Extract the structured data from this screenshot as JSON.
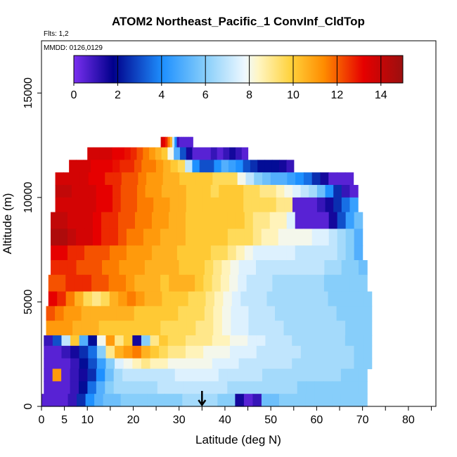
{
  "chart_data": {
    "type": "heatmap",
    "title": "ATOM2 Northeast_Pacific_1 ConvInf_CldTop",
    "subtitle_flights": "Flts: 1,2",
    "subtitle_dates": "MMDD: 0126,0129",
    "xlabel": "Latitude (deg N)",
    "ylabel": "Altitude (m)",
    "xlim": [
      0,
      86
    ],
    "ylim": [
      0,
      17500
    ],
    "x_ticks": [
      "0",
      "5",
      "10",
      "20",
      "30",
      "40",
      "50",
      "60",
      "70",
      "80"
    ],
    "y_ticks": [
      "0",
      "5000",
      "10000",
      "15000"
    ],
    "colorbar": {
      "range": [
        0,
        15
      ],
      "ticks": [
        "0",
        "2",
        "4",
        "6",
        "8",
        "10",
        "12",
        "14"
      ],
      "position": "top-inside"
    },
    "marker": {
      "type": "arrow-up",
      "x": 35
    },
    "colors": {
      "purple": "#7a2ff0",
      "navy": "#00008b",
      "blue": "#1e90ff",
      "skyblue": "#87cefa",
      "white": "#eef8ff",
      "yellow": "#ffd23c",
      "orange": "#ff8c00",
      "red": "#e60000",
      "darkred": "#9b0f0f"
    },
    "rows": [
      {
        "y0": 12400,
        "y1": 12900,
        "x0": 26,
        "x1": 33,
        "v": [
          13.5,
          13,
          12.5,
          11.5,
          10.5,
          7,
          4,
          1,
          0.5,
          0.5,
          0.5,
          0.5,
          0.5,
          0.5
        ]
      },
      {
        "y0": 11800,
        "y1": 12400,
        "x0": 10,
        "x1": 45,
        "v": [
          13.5,
          13.5,
          13.5,
          13.5,
          13,
          13,
          12.8,
          12.5,
          12,
          11.5,
          11,
          10.5,
          10,
          8,
          5,
          3,
          1.5,
          0.5,
          0.5,
          0.5,
          1,
          0.5,
          1,
          1.5,
          1,
          0.5
        ]
      },
      {
        "y0": 11200,
        "y1": 11800,
        "x0": 6,
        "x1": 55,
        "v": [
          13.5,
          13.5,
          13.5,
          13,
          13,
          13,
          12.8,
          12.5,
          12.5,
          12,
          11.5,
          11.5,
          11,
          10.5,
          10,
          9.5,
          7,
          4,
          3,
          3,
          4,
          5,
          4.5,
          4,
          3,
          2.5,
          2,
          2,
          2,
          1.5,
          1
        ]
      },
      {
        "y0": 10600,
        "y1": 11200,
        "x0": 3,
        "x1": 68,
        "v": [
          13.5,
          13.5,
          13.5,
          13.5,
          13,
          13,
          12.5,
          12.5,
          12,
          12,
          11.5,
          11,
          11,
          10.5,
          10.5,
          10,
          10,
          10,
          10,
          9.5,
          9.5,
          9.5,
          8,
          7,
          6,
          5.5,
          5,
          5,
          4.5,
          4,
          3.5,
          2.5,
          1.5,
          0.5,
          0.5,
          0.5
        ]
      },
      {
        "y0": 10000,
        "y1": 10600,
        "x0": 3,
        "x1": 69,
        "v": [
          14,
          14,
          13.5,
          13.5,
          13.5,
          13,
          13,
          12.5,
          12,
          12,
          11.5,
          11,
          11,
          10.5,
          10.5,
          10.5,
          10,
          10,
          10,
          9.5,
          10,
          10,
          10,
          9.5,
          9.5,
          9,
          9,
          8.5,
          8,
          7.5,
          7,
          6.5,
          5.5,
          4,
          2.5,
          1,
          0.5
        ]
      },
      {
        "y0": 9300,
        "y1": 10000,
        "x0": 3,
        "x1": 69,
        "v": [
          13.5,
          13.5,
          13.5,
          13.5,
          13.5,
          13,
          13,
          12.5,
          12,
          12,
          11.5,
          11.5,
          11,
          11,
          10.5,
          10.5,
          10,
          10,
          10,
          10,
          10,
          10,
          10,
          9.5,
          9.5,
          9.5,
          9.5,
          9,
          9,
          0.5,
          0.5,
          0.5,
          1,
          1.5,
          2.5,
          3.5,
          4.5
        ]
      },
      {
        "y0": 8500,
        "y1": 9300,
        "x0": 2,
        "x1": 70,
        "v": [
          14,
          14,
          13.5,
          13.5,
          13.5,
          13,
          12.5,
          12.5,
          12,
          12,
          11.5,
          11.5,
          11,
          11,
          10.5,
          10.5,
          10,
          10,
          10,
          10,
          10,
          10,
          10,
          9.5,
          9,
          9,
          8.5,
          8.5,
          7.5,
          0.5,
          0.5,
          0.5,
          0.5,
          1.5,
          3,
          4.5,
          5.5
        ]
      },
      {
        "y0": 7700,
        "y1": 8500,
        "x0": 2,
        "x1": 70,
        "v": [
          14.5,
          14.5,
          14,
          13.5,
          13.5,
          13,
          12.5,
          12.5,
          12,
          11.5,
          11.5,
          11,
          11,
          10.5,
          10.5,
          10.5,
          10,
          10,
          10,
          10,
          10,
          9.5,
          9.5,
          9.5,
          9,
          8.5,
          8.5,
          8,
          8,
          8,
          8,
          7.5,
          7.5,
          7,
          6.5,
          6,
          5
        ]
      },
      {
        "y0": 7000,
        "y1": 7700,
        "x0": 2,
        "x1": 70,
        "v": [
          13,
          13,
          12.5,
          12.5,
          12,
          12,
          12,
          11.5,
          11.5,
          11,
          11,
          11,
          10.5,
          10.5,
          10.5,
          10,
          10,
          10,
          10,
          9.5,
          9.5,
          9,
          8.5,
          8,
          7.5,
          7.5,
          7.5,
          7.5,
          7.5,
          7,
          7,
          7,
          7,
          7,
          6.5,
          6,
          5
        ]
      },
      {
        "y0": 6300,
        "y1": 7000,
        "x0": 2,
        "x1": 71,
        "v": [
          12.5,
          12.5,
          12.5,
          12,
          12,
          12,
          11.5,
          11.5,
          11,
          11,
          11,
          10.5,
          10.5,
          10.5,
          10.5,
          10,
          10,
          10,
          9.5,
          9,
          8.5,
          8,
          7.5,
          7.5,
          7,
          7,
          7,
          7,
          7,
          7,
          7,
          7,
          6.5,
          6.5,
          6,
          6,
          5.5
        ]
      },
      {
        "y0": 5500,
        "y1": 6300,
        "x0": 1.5,
        "x1": 71,
        "v": [
          12,
          12,
          12.5,
          12.5,
          12.5,
          12,
          12,
          11.5,
          11.5,
          11,
          10.5,
          10.5,
          10.5,
          10,
          10.5,
          10.5,
          10.5,
          10,
          9.5,
          9,
          8.5,
          8,
          7.5,
          7,
          7,
          7,
          6.5,
          6.5,
          6.5,
          6.5,
          6.5,
          6.5,
          6,
          6,
          6,
          6,
          6
        ]
      },
      {
        "y0": 4800,
        "y1": 5500,
        "x0": 1.5,
        "x1": 72,
        "v": [
          13,
          12.5,
          11.5,
          10.5,
          9.5,
          9,
          9.5,
          10.5,
          11,
          11.5,
          11,
          10.5,
          10.5,
          10,
          10,
          10,
          9.5,
          9.5,
          9,
          8.5,
          8,
          7.5,
          7,
          7,
          7,
          6.5,
          6.5,
          6.5,
          6.5,
          6.5,
          6.5,
          6.5,
          6,
          6,
          6,
          6,
          6
        ]
      },
      {
        "y0": 4100,
        "y1": 4800,
        "x0": 1,
        "x1": 72,
        "v": [
          12,
          11.5,
          11,
          11,
          10.5,
          10.5,
          10.5,
          10.5,
          10.5,
          10.5,
          10,
          10,
          10,
          10,
          10,
          9.5,
          9.5,
          9.5,
          9,
          8.5,
          8,
          7.5,
          7.5,
          7,
          7,
          7,
          6.5,
          6.5,
          6.5,
          6.5,
          6.5,
          6.5,
          6.5,
          6,
          6,
          6,
          6
        ]
      },
      {
        "y0": 3400,
        "y1": 4100,
        "x0": 1,
        "x1": 72,
        "v": [
          11,
          11,
          11,
          10.5,
          10.5,
          10.5,
          10,
          10,
          10,
          10,
          10,
          10,
          10,
          9.5,
          9.5,
          9.5,
          9.5,
          9,
          9,
          8.5,
          8,
          7.5,
          7.5,
          7,
          7,
          7,
          7,
          6.5,
          6.5,
          6.5,
          6.5,
          6.5,
          6.5,
          6.5,
          6,
          6,
          6
        ]
      },
      {
        "y0": 2900,
        "y1": 3400,
        "x0": 0.5,
        "x1": 72,
        "v": [
          1,
          3,
          7,
          10,
          5,
          2,
          8,
          11,
          9,
          10,
          1.5,
          6,
          9,
          10,
          9.5,
          9.5,
          9,
          9,
          9,
          8.5,
          8.5,
          8,
          8,
          7.5,
          7.5,
          7,
          7,
          7,
          6.5,
          6.5,
          6.5,
          6.5,
          6.5,
          6.5,
          6,
          6,
          6
        ]
      },
      {
        "y0": 2300,
        "y1": 2900,
        "x0": 0.5,
        "x1": 72,
        "v": [
          0.5,
          0.5,
          1,
          1.5,
          2.5,
          3.5,
          6,
          9,
          10.5,
          11,
          11.5,
          10.5,
          10,
          9.5,
          9,
          9,
          8.5,
          8.5,
          8,
          8,
          8,
          7.5,
          7.5,
          7.5,
          7,
          7,
          7,
          7,
          7,
          6.5,
          6.5,
          6.5,
          6.5,
          6.5,
          6.5,
          6,
          6
        ]
      },
      {
        "y0": 1800,
        "y1": 2300,
        "x0": 0.5,
        "x1": 72,
        "v": [
          0.5,
          0.5,
          0.5,
          1,
          2,
          3,
          4.5,
          6,
          7.5,
          8,
          8.5,
          9,
          8.5,
          8.5,
          8,
          8,
          8,
          8,
          8,
          7.5,
          7.5,
          7.5,
          7,
          7,
          7,
          7,
          7,
          7,
          6.5,
          6.5,
          6.5,
          6.5,
          6.5,
          6.5,
          6.5,
          6,
          6
        ]
      },
      {
        "y0": 1200,
        "y1": 1800,
        "x0": 0.5,
        "x1": 71,
        "v": [
          0.5,
          11,
          0.5,
          1,
          1.5,
          2.5,
          4,
          5.5,
          6.5,
          7,
          7,
          7,
          7,
          7,
          7,
          7.5,
          7.5,
          7.5,
          7.5,
          7.5,
          7,
          7,
          7,
          7,
          7,
          6.5,
          6.5,
          6.5,
          6.5,
          6.5,
          6.5,
          6.5,
          6.5,
          6.5,
          6,
          6,
          6
        ]
      },
      {
        "y0": 600,
        "y1": 1200,
        "x0": 0.5,
        "x1": 71,
        "v": [
          0.5,
          0.5,
          0.5,
          1,
          2,
          3.5,
          5,
          6,
          6.5,
          6.5,
          6.5,
          6.5,
          6.5,
          7,
          7,
          7,
          7,
          7,
          7,
          7,
          7,
          6.5,
          6.5,
          6.5,
          6.5,
          6.5,
          6.5,
          6.5,
          6.5,
          6,
          6,
          6,
          6,
          6,
          6,
          6,
          6
        ]
      },
      {
        "y0": 0,
        "y1": 600,
        "x0": 0,
        "x1": 71,
        "v": [
          0.5,
          0.5,
          0.5,
          1,
          2.5,
          4,
          5,
          5.5,
          5.5,
          6,
          6,
          6,
          6,
          6,
          6,
          6,
          6.5,
          6.5,
          6.5,
          6.5,
          6,
          6,
          1.5,
          0.5,
          1,
          5.5,
          5.5,
          6,
          6,
          6,
          6,
          6,
          6,
          6,
          6,
          6,
          6
        ]
      }
    ]
  }
}
